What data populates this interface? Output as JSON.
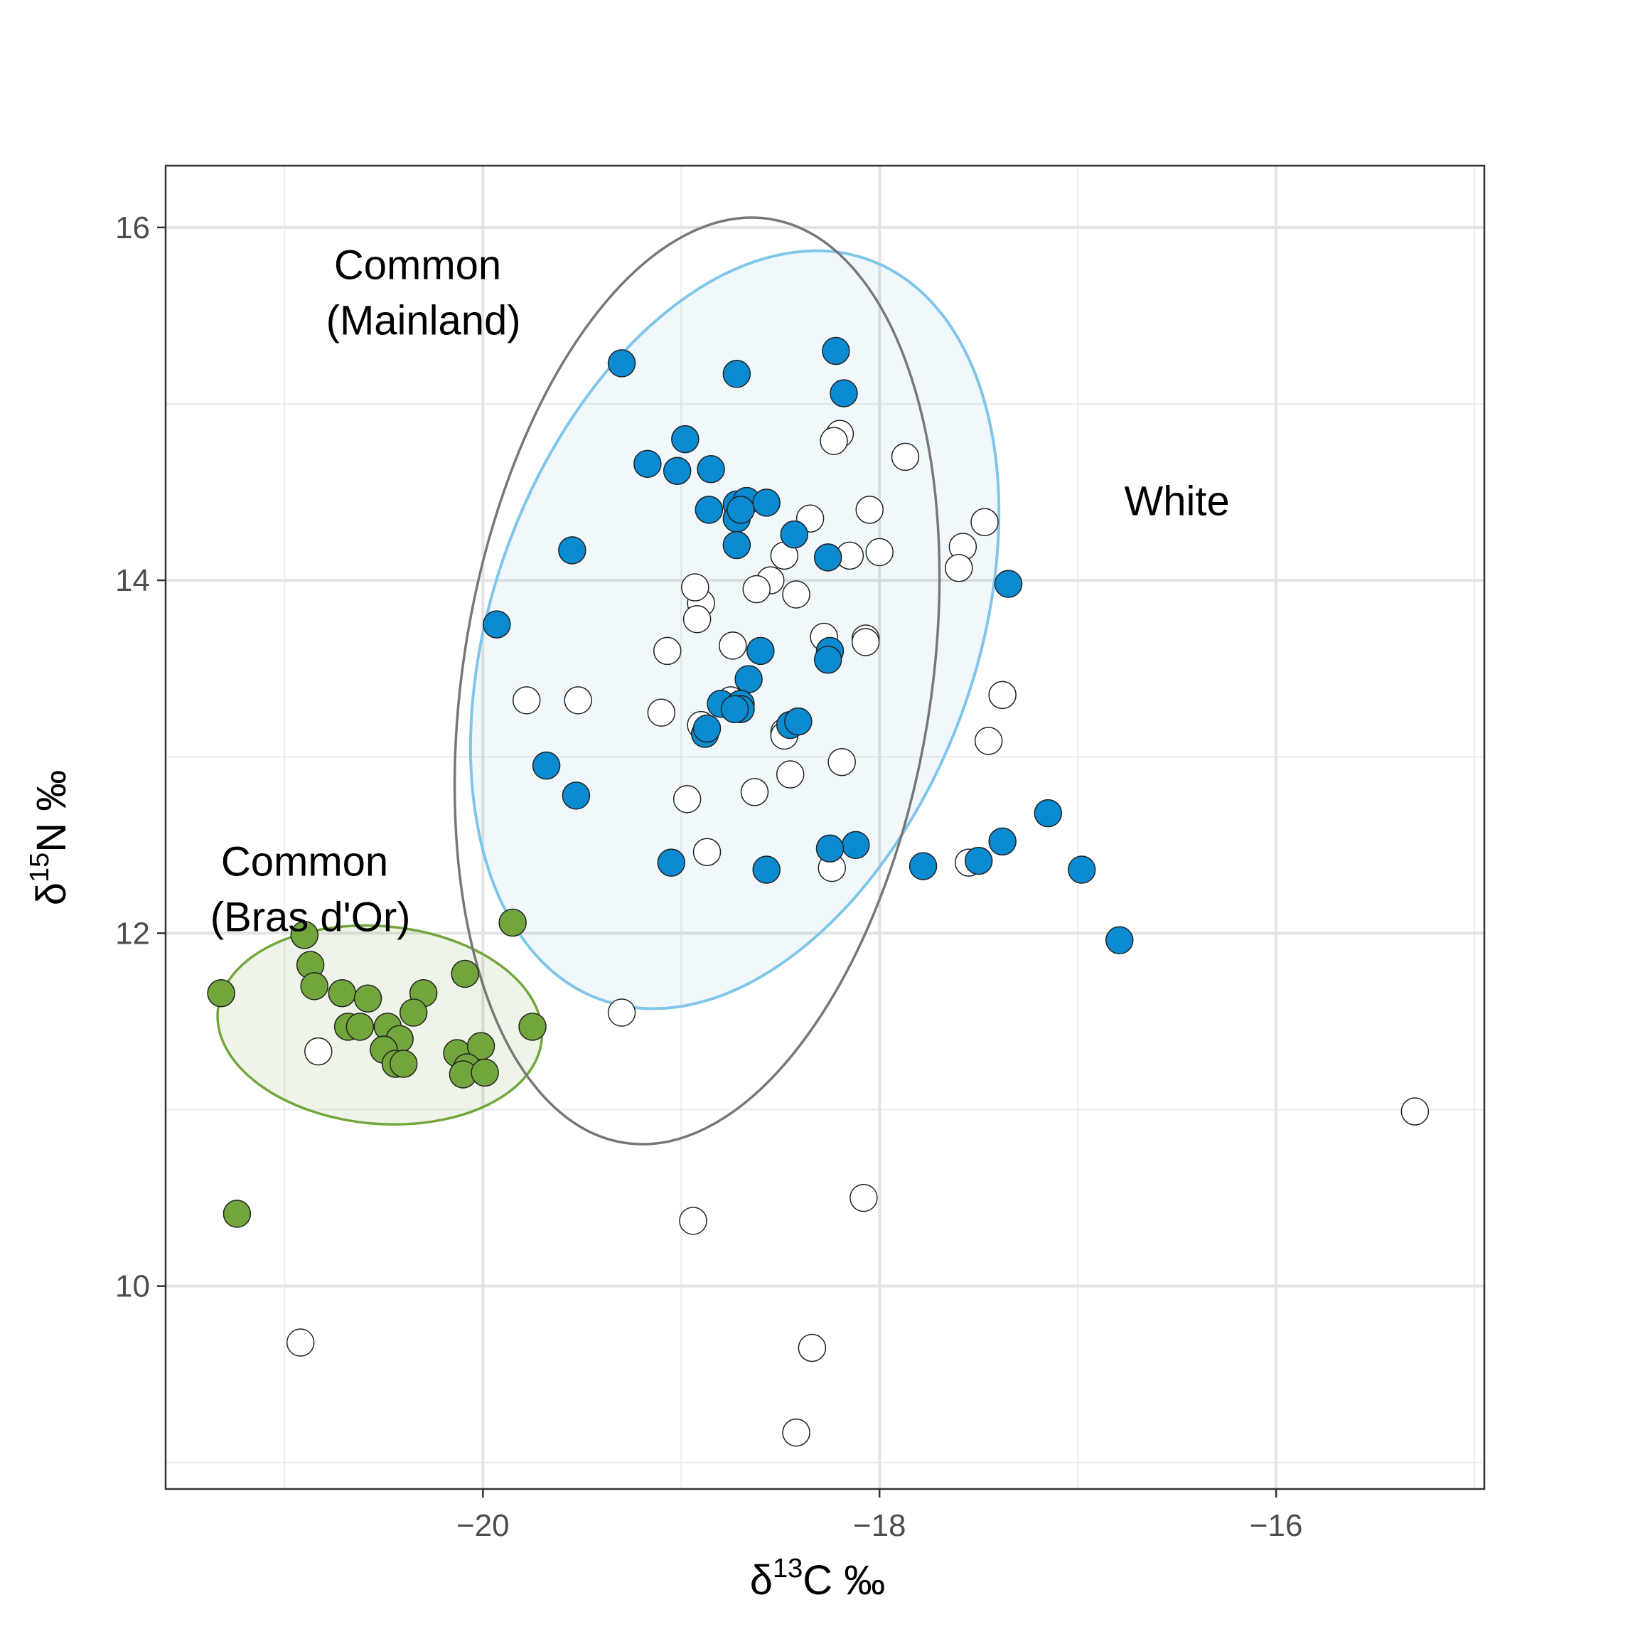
{
  "chart_data": {
    "type": "scatter",
    "xlabel": {
      "prefix": "δ",
      "sup": "13",
      "main": "C ‰"
    },
    "ylabel": {
      "prefix": "δ",
      "sup": "15",
      "main": "N ‰"
    },
    "xlim": [
      -21.6,
      -14.95
    ],
    "ylim": [
      8.85,
      16.35
    ],
    "x_ticks": [
      -20,
      -18,
      -16
    ],
    "y_ticks": [
      10,
      12,
      14,
      16
    ],
    "x_tick_labels": [
      "−20",
      "−18",
      "−16"
    ],
    "y_tick_labels": [
      "10",
      "12",
      "14",
      "16"
    ],
    "grid": true,
    "colors": {
      "white_fill": "#ffffff",
      "mainland_fill": "#0a8ad0",
      "bras_fill": "#72a63c",
      "white_ellipse": "#777777",
      "mainland_ellipse": "#0a8ad0",
      "mainland_ellipse_light": "#80c6ea",
      "bras_ellipse": "#72a63c"
    },
    "ellipses": [
      {
        "group": "white",
        "cx": -18.92,
        "cy": 13.43,
        "rx": 1.18,
        "ry": 2.65,
        "angle_deg": 9
      },
      {
        "group": "mainland",
        "cx": -18.73,
        "cy": 13.72,
        "rx": 1.22,
        "ry": 2.23,
        "angle_deg": 20
      },
      {
        "group": "bras",
        "cx": -20.52,
        "cy": 11.48,
        "rx": 0.82,
        "ry": 0.56,
        "angle_deg": 5
      }
    ],
    "annotations": [
      {
        "lines": [
          "Common",
          "(Mainland)"
        ],
        "x": -20.3,
        "y": 15.63
      },
      {
        "lines": [
          "White"
        ],
        "x": -16.5,
        "y": 14.45
      },
      {
        "lines": [
          "Common",
          "(Bras d'Or)"
        ],
        "x": -20.87,
        "y": 12.25
      }
    ],
    "series": [
      {
        "group": "white",
        "points": [
          [
            -18.2,
            14.83
          ],
          [
            -18.23,
            14.79
          ],
          [
            -17.87,
            14.7
          ],
          [
            -18.05,
            14.4
          ],
          [
            -18.35,
            14.35
          ],
          [
            -17.47,
            14.33
          ],
          [
            -17.58,
            14.19
          ],
          [
            -18.48,
            14.14
          ],
          [
            -18.15,
            14.14
          ],
          [
            -18.0,
            14.16
          ],
          [
            -17.6,
            14.07
          ],
          [
            -18.55,
            14.0
          ],
          [
            -18.62,
            13.95
          ],
          [
            -18.42,
            13.92
          ],
          [
            -18.9,
            13.87
          ],
          [
            -18.93,
            13.96
          ],
          [
            -18.92,
            13.78
          ],
          [
            -18.28,
            13.68
          ],
          [
            -18.07,
            13.67
          ],
          [
            -18.07,
            13.65
          ],
          [
            -18.74,
            13.63
          ],
          [
            -19.07,
            13.6
          ],
          [
            -17.38,
            13.35
          ],
          [
            -19.78,
            13.32
          ],
          [
            -19.52,
            13.32
          ],
          [
            -18.75,
            13.32
          ],
          [
            -18.74,
            13.28
          ],
          [
            -19.1,
            13.25
          ],
          [
            -18.9,
            13.18
          ],
          [
            -18.48,
            13.14
          ],
          [
            -18.48,
            13.12
          ],
          [
            -17.45,
            13.09
          ],
          [
            -18.19,
            12.97
          ],
          [
            -18.45,
            12.9
          ],
          [
            -18.97,
            12.76
          ],
          [
            -18.63,
            12.8
          ],
          [
            -18.87,
            12.46
          ],
          [
            -18.24,
            12.37
          ],
          [
            -17.55,
            12.4
          ],
          [
            -19.3,
            11.55
          ],
          [
            -20.83,
            11.33
          ],
          [
            -15.3,
            10.99
          ],
          [
            -18.08,
            10.5
          ],
          [
            -18.94,
            10.37
          ],
          [
            -20.92,
            9.68
          ],
          [
            -18.34,
            9.65
          ],
          [
            -18.42,
            9.17
          ]
        ]
      },
      {
        "group": "mainland",
        "points": [
          [
            -18.22,
            15.3
          ],
          [
            -19.3,
            15.23
          ],
          [
            -18.72,
            15.17
          ],
          [
            -18.18,
            15.06
          ],
          [
            -18.98,
            14.8
          ],
          [
            -19.17,
            14.66
          ],
          [
            -18.85,
            14.63
          ],
          [
            -19.02,
            14.62
          ],
          [
            -18.72,
            14.43
          ],
          [
            -18.67,
            14.45
          ],
          [
            -18.57,
            14.44
          ],
          [
            -18.86,
            14.4
          ],
          [
            -18.72,
            14.35
          ],
          [
            -18.7,
            14.4
          ],
          [
            -18.43,
            14.26
          ],
          [
            -19.55,
            14.17
          ],
          [
            -18.72,
            14.2
          ],
          [
            -18.26,
            14.13
          ],
          [
            -17.35,
            13.98
          ],
          [
            -19.93,
            13.75
          ],
          [
            -18.25,
            13.6
          ],
          [
            -18.6,
            13.6
          ],
          [
            -18.26,
            13.55
          ],
          [
            -18.66,
            13.44
          ],
          [
            -18.8,
            13.3
          ],
          [
            -18.7,
            13.3
          ],
          [
            -18.7,
            13.27
          ],
          [
            -18.73,
            13.27
          ],
          [
            -18.45,
            13.18
          ],
          [
            -18.88,
            13.13
          ],
          [
            -18.87,
            13.16
          ],
          [
            -18.41,
            13.2
          ],
          [
            -19.68,
            12.95
          ],
          [
            -19.53,
            12.78
          ],
          [
            -17.15,
            12.68
          ],
          [
            -17.38,
            12.52
          ],
          [
            -18.12,
            12.5
          ],
          [
            -18.25,
            12.48
          ],
          [
            -17.5,
            12.41
          ],
          [
            -19.05,
            12.4
          ],
          [
            -17.78,
            12.38
          ],
          [
            -18.57,
            12.36
          ],
          [
            -16.98,
            12.36
          ],
          [
            -16.79,
            11.96
          ]
        ]
      },
      {
        "group": "bras",
        "points": [
          [
            -19.85,
            12.06
          ],
          [
            -20.9,
            11.99
          ],
          [
            -20.87,
            11.82
          ],
          [
            -20.09,
            11.77
          ],
          [
            -20.85,
            11.7
          ],
          [
            -20.71,
            11.66
          ],
          [
            -20.3,
            11.66
          ],
          [
            -21.32,
            11.66
          ],
          [
            -20.58,
            11.63
          ],
          [
            -20.35,
            11.55
          ],
          [
            -20.68,
            11.47
          ],
          [
            -20.48,
            11.47
          ],
          [
            -20.62,
            11.47
          ],
          [
            -19.75,
            11.47
          ],
          [
            -20.42,
            11.4
          ],
          [
            -20.5,
            11.34
          ],
          [
            -20.13,
            11.32
          ],
          [
            -20.01,
            11.36
          ],
          [
            -20.44,
            11.26
          ],
          [
            -20.4,
            11.26
          ],
          [
            -20.08,
            11.24
          ],
          [
            -20.1,
            11.2
          ],
          [
            -19.99,
            11.21
          ],
          [
            -21.24,
            10.41
          ]
        ]
      }
    ]
  }
}
